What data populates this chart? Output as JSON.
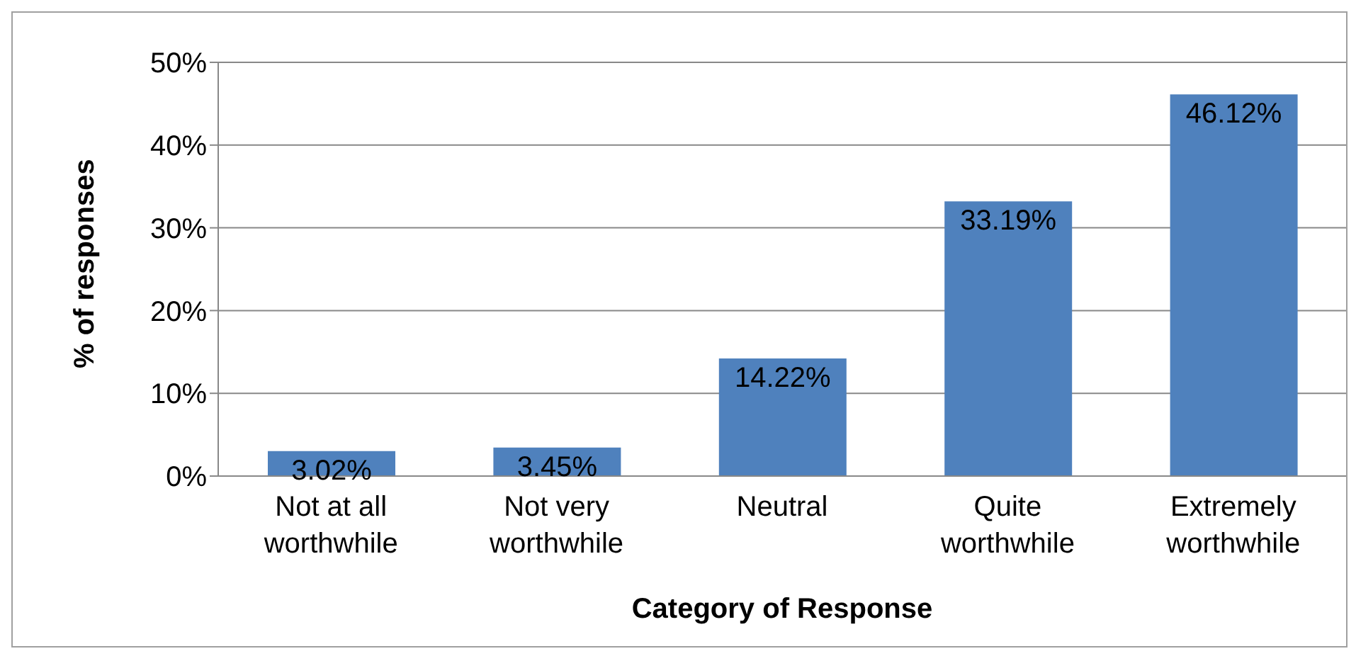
{
  "chart_data": {
    "type": "bar",
    "xlabel": "Category of Response",
    "ylabel": "%  of  responses",
    "categories": [
      "Not at all worthwhile",
      "Not very worthwhile",
      "Neutral",
      "Quite worthwhile",
      "Extremely worthwhile"
    ],
    "values": [
      3.02,
      3.45,
      14.22,
      33.19,
      46.12
    ],
    "value_labels": [
      "3.02%",
      "3.45%",
      "14.22%",
      "33.19%",
      "46.12%"
    ],
    "color": "#4f81bd",
    "ylim": [
      0,
      50
    ],
    "yticks": [
      {
        "value": 0,
        "label": "0%"
      },
      {
        "value": 10,
        "label": "10%"
      },
      {
        "value": 20,
        "label": "20%"
      },
      {
        "value": 30,
        "label": "30%"
      },
      {
        "value": 40,
        "label": "40%"
      },
      {
        "value": 50,
        "label": "50%"
      }
    ],
    "grid": "y",
    "legend": false
  }
}
